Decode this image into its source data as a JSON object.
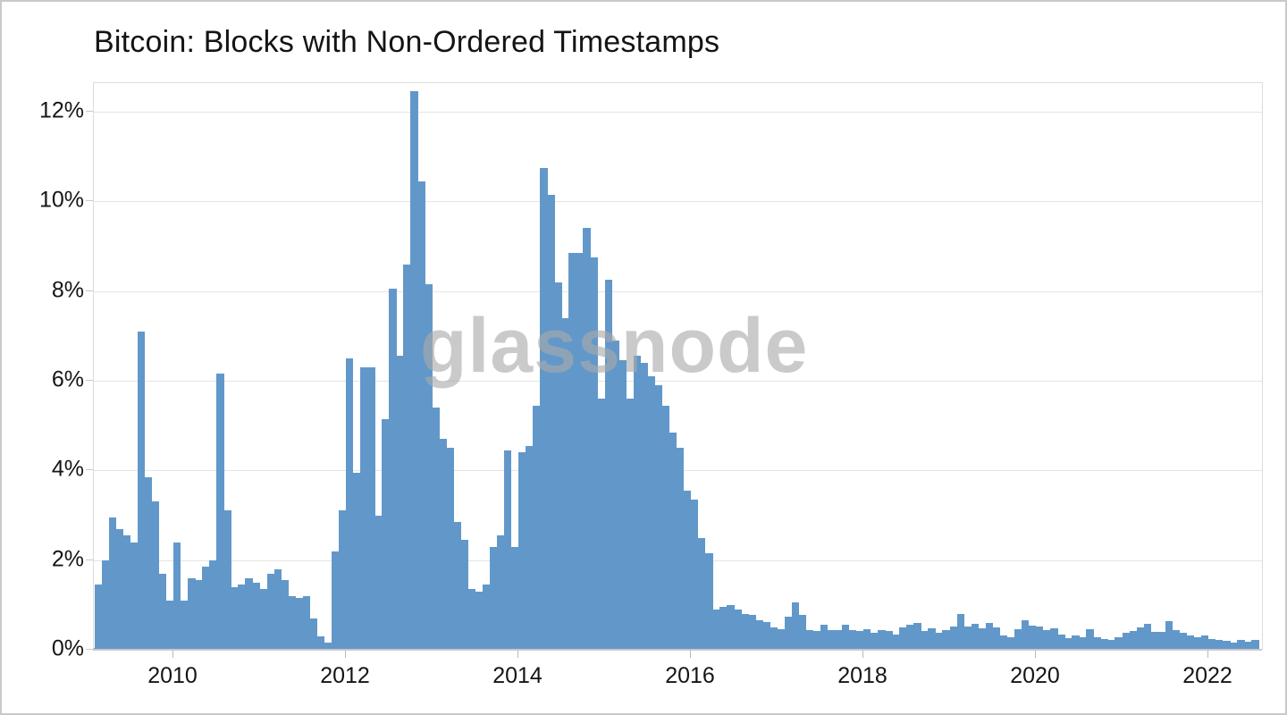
{
  "title": "Bitcoin: Blocks with Non-Ordered Timestamps",
  "watermark": "glassnode",
  "colors": {
    "bar": "#6298c9",
    "grid": "#e4e4e4",
    "axis": "#c9c9c9",
    "frame_border": "#c9c9c9",
    "text": "#151515",
    "watermark": "#aaaaaa"
  },
  "y_axis": {
    "tick_labels": [
      "0%",
      "2%",
      "4%",
      "6%",
      "8%",
      "10%",
      "12%"
    ],
    "tick_values": [
      0,
      2,
      4,
      6,
      8,
      10,
      12
    ]
  },
  "x_axis": {
    "tick_labels": [
      "2010",
      "2012",
      "2014",
      "2016",
      "2018",
      "2020",
      "2022"
    ],
    "tick_years": [
      2010,
      2012,
      2014,
      2016,
      2018,
      2020,
      2022
    ]
  },
  "chart_data": {
    "type": "bar",
    "title": "Bitcoin: Blocks with Non-Ordered Timestamps",
    "unit": "%",
    "x_unit": "month",
    "xlabel": "",
    "ylabel": "",
    "ylim": [
      0,
      12.64
    ],
    "grid": "horizontal",
    "legend": "none",
    "points": [
      [
        "2009-01",
        0.05
      ],
      [
        "2009-02",
        1.45
      ],
      [
        "2009-03",
        2.0
      ],
      [
        "2009-04",
        2.95
      ],
      [
        "2009-05",
        2.7
      ],
      [
        "2009-06",
        2.55
      ],
      [
        "2009-07",
        2.4
      ],
      [
        "2009-08",
        7.1
      ],
      [
        "2009-09",
        3.85
      ],
      [
        "2009-10",
        3.3
      ],
      [
        "2009-11",
        1.7
      ],
      [
        "2009-12",
        1.1
      ],
      [
        "2010-01",
        2.4
      ],
      [
        "2010-02",
        1.1
      ],
      [
        "2010-03",
        1.6
      ],
      [
        "2010-04",
        1.55
      ],
      [
        "2010-05",
        1.85
      ],
      [
        "2010-06",
        2.0
      ],
      [
        "2010-07",
        6.15
      ],
      [
        "2010-08",
        3.1
      ],
      [
        "2010-09",
        1.4
      ],
      [
        "2010-10",
        1.45
      ],
      [
        "2010-11",
        1.6
      ],
      [
        "2010-12",
        1.5
      ],
      [
        "2011-01",
        1.35
      ],
      [
        "2011-02",
        1.7
      ],
      [
        "2011-03",
        1.8
      ],
      [
        "2011-04",
        1.55
      ],
      [
        "2011-05",
        1.2
      ],
      [
        "2011-06",
        1.15
      ],
      [
        "2011-07",
        1.2
      ],
      [
        "2011-08",
        0.7
      ],
      [
        "2011-09",
        0.3
      ],
      [
        "2011-10",
        0.15
      ],
      [
        "2011-11",
        2.2
      ],
      [
        "2011-12",
        3.1
      ],
      [
        "2012-01",
        6.5
      ],
      [
        "2012-02",
        3.95
      ],
      [
        "2012-03",
        6.3
      ],
      [
        "2012-04",
        6.3
      ],
      [
        "2012-05",
        3.0
      ],
      [
        "2012-06",
        5.15
      ],
      [
        "2012-07",
        8.05
      ],
      [
        "2012-08",
        6.55
      ],
      [
        "2012-09",
        8.6
      ],
      [
        "2012-10",
        12.45
      ],
      [
        "2012-11",
        10.45
      ],
      [
        "2012-12",
        8.15
      ],
      [
        "2013-01",
        5.4
      ],
      [
        "2013-02",
        4.7
      ],
      [
        "2013-03",
        4.5
      ],
      [
        "2013-04",
        2.85
      ],
      [
        "2013-05",
        2.45
      ],
      [
        "2013-06",
        1.35
      ],
      [
        "2013-07",
        1.3
      ],
      [
        "2013-08",
        1.45
      ],
      [
        "2013-09",
        2.3
      ],
      [
        "2013-10",
        2.55
      ],
      [
        "2013-11",
        4.45
      ],
      [
        "2013-12",
        2.3
      ],
      [
        "2014-01",
        4.4
      ],
      [
        "2014-02",
        4.55
      ],
      [
        "2014-03",
        5.45
      ],
      [
        "2014-04",
        10.75
      ],
      [
        "2014-05",
        10.15
      ],
      [
        "2014-06",
        8.2
      ],
      [
        "2014-07",
        7.4
      ],
      [
        "2014-08",
        8.85
      ],
      [
        "2014-09",
        8.85
      ],
      [
        "2014-10",
        9.4
      ],
      [
        "2014-11",
        8.75
      ],
      [
        "2014-12",
        5.6
      ],
      [
        "2015-01",
        8.25
      ],
      [
        "2015-02",
        6.9
      ],
      [
        "2015-03",
        6.45
      ],
      [
        "2015-04",
        5.6
      ],
      [
        "2015-05",
        6.55
      ],
      [
        "2015-06",
        6.4
      ],
      [
        "2015-07",
        6.1
      ],
      [
        "2015-08",
        5.9
      ],
      [
        "2015-09",
        5.45
      ],
      [
        "2015-10",
        4.85
      ],
      [
        "2015-11",
        4.5
      ],
      [
        "2015-12",
        3.55
      ],
      [
        "2016-01",
        3.35
      ],
      [
        "2016-02",
        2.5
      ],
      [
        "2016-03",
        2.15
      ],
      [
        "2016-04",
        0.9
      ],
      [
        "2016-05",
        0.95
      ],
      [
        "2016-06",
        1.0
      ],
      [
        "2016-07",
        0.9
      ],
      [
        "2016-08",
        0.8
      ],
      [
        "2016-09",
        0.78
      ],
      [
        "2016-10",
        0.65
      ],
      [
        "2016-11",
        0.62
      ],
      [
        "2016-12",
        0.5
      ],
      [
        "2017-01",
        0.45
      ],
      [
        "2017-02",
        0.73
      ],
      [
        "2017-03",
        1.05
      ],
      [
        "2017-04",
        0.78
      ],
      [
        "2017-05",
        0.43
      ],
      [
        "2017-06",
        0.42
      ],
      [
        "2017-07",
        0.55
      ],
      [
        "2017-08",
        0.44
      ],
      [
        "2017-09",
        0.43
      ],
      [
        "2017-10",
        0.56
      ],
      [
        "2017-11",
        0.43
      ],
      [
        "2017-12",
        0.42
      ],
      [
        "2018-01",
        0.45
      ],
      [
        "2018-02",
        0.38
      ],
      [
        "2018-03",
        0.43
      ],
      [
        "2018-04",
        0.41
      ],
      [
        "2018-05",
        0.34
      ],
      [
        "2018-06",
        0.5
      ],
      [
        "2018-07",
        0.55
      ],
      [
        "2018-08",
        0.6
      ],
      [
        "2018-09",
        0.41
      ],
      [
        "2018-10",
        0.47
      ],
      [
        "2018-11",
        0.38
      ],
      [
        "2018-12",
        0.43
      ],
      [
        "2019-01",
        0.52
      ],
      [
        "2019-02",
        0.8
      ],
      [
        "2019-03",
        0.52
      ],
      [
        "2019-04",
        0.57
      ],
      [
        "2019-05",
        0.47
      ],
      [
        "2019-06",
        0.6
      ],
      [
        "2019-07",
        0.5
      ],
      [
        "2019-08",
        0.31
      ],
      [
        "2019-09",
        0.28
      ],
      [
        "2019-10",
        0.45
      ],
      [
        "2019-11",
        0.65
      ],
      [
        "2019-12",
        0.53
      ],
      [
        "2020-01",
        0.52
      ],
      [
        "2020-02",
        0.43
      ],
      [
        "2020-03",
        0.47
      ],
      [
        "2020-04",
        0.34
      ],
      [
        "2020-05",
        0.26
      ],
      [
        "2020-06",
        0.31
      ],
      [
        "2020-07",
        0.28
      ],
      [
        "2020-08",
        0.46
      ],
      [
        "2020-09",
        0.28
      ],
      [
        "2020-10",
        0.23
      ],
      [
        "2020-11",
        0.21
      ],
      [
        "2020-12",
        0.28
      ],
      [
        "2021-01",
        0.37
      ],
      [
        "2021-02",
        0.41
      ],
      [
        "2021-03",
        0.49
      ],
      [
        "2021-04",
        0.58
      ],
      [
        "2021-05",
        0.4
      ],
      [
        "2021-06",
        0.4
      ],
      [
        "2021-07",
        0.63
      ],
      [
        "2021-08",
        0.44
      ],
      [
        "2021-09",
        0.38
      ],
      [
        "2021-10",
        0.32
      ],
      [
        "2021-11",
        0.28
      ],
      [
        "2021-12",
        0.32
      ],
      [
        "2022-01",
        0.23
      ],
      [
        "2022-02",
        0.21
      ],
      [
        "2022-03",
        0.19
      ],
      [
        "2022-04",
        0.15
      ],
      [
        "2022-05",
        0.21
      ],
      [
        "2022-06",
        0.17
      ],
      [
        "2022-07",
        0.22
      ]
    ]
  }
}
